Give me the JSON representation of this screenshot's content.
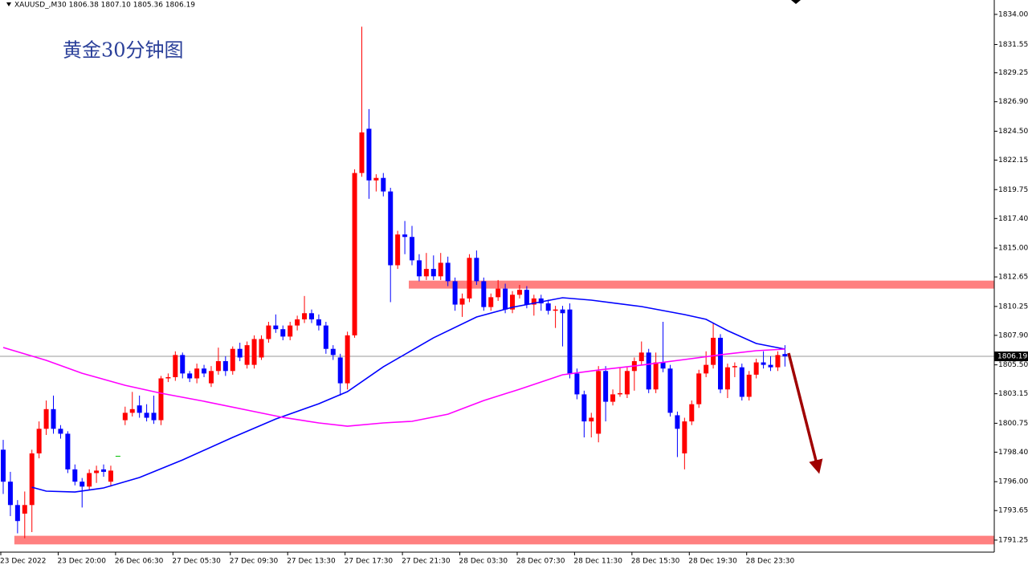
{
  "chart_data": {
    "type": "candlestick",
    "header": "XAUUSD_,M30  1806.38 1807.10 1805.36 1806.19",
    "title": "黄金30分钟图",
    "categories": [
      "23 Dec 2022",
      null,
      null,
      null,
      null,
      null,
      null,
      null,
      "23 Dec 20:00",
      null,
      null,
      null,
      null,
      null,
      null,
      null,
      "26 Dec 06:30",
      null,
      null,
      null,
      null,
      null,
      null,
      null,
      "27 Dec 05:30",
      null,
      null,
      null,
      null,
      null,
      null,
      null,
      "27 Dec 09:30",
      null,
      null,
      null,
      null,
      null,
      null,
      null,
      "27 Dec 13:30",
      null,
      null,
      null,
      null,
      null,
      null,
      null,
      "27 Dec 17:30",
      null,
      null,
      null,
      null,
      null,
      null,
      null,
      "27 Dec 21:30",
      null,
      null,
      null,
      null,
      null,
      null,
      null,
      "28 Dec 03:30",
      null,
      null,
      null,
      null,
      null,
      null,
      null,
      "28 Dec 07:30",
      null,
      null,
      null,
      null,
      null,
      null,
      null,
      "28 Dec 11:30",
      null,
      null,
      null,
      null,
      null,
      null,
      null,
      "28 Dec 15:30",
      null,
      null,
      null,
      null,
      null,
      null,
      null,
      "28 Dec 19:30",
      null,
      null,
      null,
      null,
      null,
      null,
      null,
      "28 Dec 23:30",
      null,
      null,
      null,
      null,
      null
    ],
    "open": [
      1798.6,
      1796.0,
      1794.1,
      1793.4,
      1794.1,
      1798.3,
      1800.3,
      1801.9,
      1800.3,
      1799.9,
      1797.0,
      1796.0,
      1795.6,
      1796.7,
      1797.0,
      1796.0,
      1798.1,
      1801.0,
      1801.6,
      1802.2,
      1801.6,
      1801.6,
      1801.0,
      1804.4,
      1804.5,
      1806.3,
      1804.8,
      1804.4,
      1805.2,
      1804.0,
      1805.0,
      1805.8,
      1805.0,
      1806.8,
      1805.5,
      1805.5,
      1806.1,
      1807.6,
      1808.7,
      1808.4,
      1807.8,
      1808.7,
      1809.2,
      1809.7,
      1809.2,
      1808.7,
      1806.8,
      1806.1,
      1804.0,
      1807.9,
      1821.1,
      1824.7,
      1820.5,
      1820.7,
      1819.6,
      1813.6,
      1816.1,
      1815.9,
      1814.0,
      1812.7,
      1813.3,
      1812.7,
      1813.8,
      1812.3,
      1810.4,
      1810.9,
      1814.2,
      1812.3,
      1810.2,
      1811.0,
      1811.7,
      1810.0,
      1811.2,
      1811.6,
      1810.4,
      1810.9,
      1810.5,
      1809.9,
      1810.0,
      1810.0,
      1804.8,
      1803.1,
      1800.9,
      1799.9,
      1805.0,
      1802.5,
      1803.1,
      1803.1,
      1805.0,
      1805.8,
      1806.5,
      1803.5,
      1805.7,
      1805.2,
      1801.4,
      1798.3,
      1800.9,
      1802.3,
      1804.8,
      1805.5,
      1807.7,
      1803.5,
      1805.3,
      1805.3,
      1802.9,
      1804.7,
      1805.7,
      1805.5,
      1805.3,
      1806.38
    ],
    "high": [
      1799.4,
      1796.8,
      1794.5,
      1795.2,
      1798.6,
      1800.9,
      1802.6,
      1803.0,
      1800.6,
      1800.1,
      1797.4,
      1796.3,
      1797.0,
      1797.3,
      1797.4,
      1797.3,
      1798.1,
      1802.1,
      1803.3,
      1803.0,
      1802.3,
      1803.0,
      1804.6,
      1804.8,
      1806.6,
      1806.5,
      1805.0,
      1805.6,
      1805.5,
      1805.4,
      1806.9,
      1806.2,
      1807.0,
      1807.3,
      1807.4,
      1807.9,
      1807.9,
      1809.0,
      1809.6,
      1808.7,
      1809.0,
      1809.5,
      1811.1,
      1810.0,
      1809.6,
      1809.0,
      1807.1,
      1806.4,
      1808.2,
      1821.4,
      1833.0,
      1826.3,
      1821.0,
      1821.1,
      1819.9,
      1816.4,
      1817.2,
      1816.8,
      1814.5,
      1814.6,
      1814.4,
      1814.6,
      1814.3,
      1812.6,
      1811.3,
      1814.5,
      1814.8,
      1812.6,
      1811.3,
      1812.4,
      1812.1,
      1811.5,
      1812.0,
      1811.9,
      1811.2,
      1811.2,
      1810.8,
      1810.3,
      1810.3,
      1810.5,
      1805.2,
      1803.4,
      1801.6,
      1805.4,
      1805.4,
      1803.5,
      1805.3,
      1805.3,
      1806.1,
      1807.4,
      1806.8,
      1806.5,
      1809.0,
      1805.5,
      1801.7,
      1801.2,
      1802.6,
      1805.1,
      1806.6,
      1808.9,
      1808.0,
      1805.6,
      1805.7,
      1805.6,
      1805.0,
      1806.0,
      1806.6,
      1806.2,
      1806.6,
      1807.1
    ],
    "low": [
      1795.0,
      1793.2,
      1791.8,
      1791.4,
      1791.9,
      1797.9,
      1799.8,
      1799.9,
      1799.5,
      1796.7,
      1795.7,
      1793.9,
      1795.3,
      1795.9,
      1796.4,
      1795.6,
      1798.1,
      1800.6,
      1801.3,
      1801.2,
      1800.9,
      1800.7,
      1800.6,
      1804.1,
      1804.2,
      1804.4,
      1804.1,
      1804.0,
      1804.5,
      1803.7,
      1804.7,
      1804.6,
      1804.7,
      1805.8,
      1805.2,
      1805.2,
      1805.9,
      1807.3,
      1808.1,
      1807.5,
      1807.5,
      1808.3,
      1808.9,
      1808.9,
      1808.3,
      1806.4,
      1805.9,
      1803.0,
      1803.5,
      1807.7,
      1820.8,
      1819.0,
      1819.6,
      1819.2,
      1810.6,
      1813.3,
      1814.5,
      1813.6,
      1812.3,
      1812.4,
      1812.4,
      1812.4,
      1811.9,
      1809.9,
      1809.4,
      1810.6,
      1812.0,
      1809.9,
      1809.9,
      1810.7,
      1809.7,
      1809.7,
      1810.9,
      1810.1,
      1809.5,
      1809.9,
      1809.6,
      1808.5,
      1807.0,
      1804.4,
      1802.7,
      1799.6,
      1799.6,
      1799.2,
      1800.9,
      1802.2,
      1802.9,
      1802.8,
      1803.4,
      1805.5,
      1803.2,
      1803.2,
      1804.9,
      1801.3,
      1798.0,
      1797.0,
      1800.6,
      1802.0,
      1804.5,
      1805.2,
      1803.2,
      1802.8,
      1804.5,
      1802.6,
      1802.6,
      1804.4,
      1805.2,
      1805.0,
      1805.0,
      1805.36
    ],
    "close": [
      1796.0,
      1794.1,
      1792.8,
      1794.1,
      1798.3,
      1800.3,
      1801.9,
      1800.3,
      1799.9,
      1797.0,
      1796.0,
      1795.6,
      1796.7,
      1796.9,
      1796.8,
      1796.9,
      1798.1,
      1801.6,
      1801.9,
      1801.6,
      1801.2,
      1801.0,
      1804.4,
      1804.5,
      1806.3,
      1804.8,
      1804.4,
      1805.2,
      1804.8,
      1805.0,
      1805.8,
      1805.0,
      1806.8,
      1806.1,
      1807.1,
      1807.6,
      1807.6,
      1808.7,
      1808.4,
      1807.8,
      1808.7,
      1809.2,
      1809.7,
      1809.2,
      1808.7,
      1806.8,
      1806.3,
      1804.0,
      1807.9,
      1821.1,
      1824.4,
      1820.5,
      1820.7,
      1819.6,
      1813.6,
      1816.1,
      1815.9,
      1814.0,
      1812.7,
      1813.3,
      1812.7,
      1813.8,
      1812.3,
      1810.4,
      1810.9,
      1814.2,
      1812.3,
      1810.2,
      1811.0,
      1811.7,
      1810.0,
      1811.2,
      1811.6,
      1810.4,
      1810.9,
      1810.5,
      1809.9,
      1810.0,
      1809.7,
      1804.8,
      1803.1,
      1800.9,
      1801.2,
      1805.0,
      1802.5,
      1803.1,
      1803.2,
      1805.0,
      1805.8,
      1806.5,
      1803.5,
      1805.7,
      1805.2,
      1801.6,
      1800.3,
      1800.9,
      1802.3,
      1804.8,
      1805.5,
      1807.7,
      1803.5,
      1805.3,
      1805.4,
      1802.9,
      1804.7,
      1805.7,
      1805.5,
      1805.3,
      1806.3,
      1806.19
    ],
    "up_color": "#ff0000",
    "down_color": "#0000ff",
    "doji_color": "#00c000",
    "ma_series": [
      {
        "color": "#0000ff",
        "x": [
          4,
          6,
          10,
          14,
          19,
          25,
          32,
          38,
          44,
          48,
          53,
          60,
          66,
          71,
          78,
          82,
          89,
          95,
          98,
          101,
          105,
          109
        ],
        "values": [
          1795.55,
          1795.23,
          1795.16,
          1795.49,
          1796.34,
          1797.77,
          1799.6,
          1801.1,
          1802.34,
          1803.32,
          1805.34,
          1807.7,
          1809.39,
          1810.18,
          1810.96,
          1810.76,
          1810.24,
          1809.59,
          1809.2,
          1808.28,
          1807.24,
          1806.78
        ]
      },
      {
        "color": "#ff00ff",
        "x": [
          0,
          6,
          11,
          17,
          22,
          28,
          34,
          39,
          44,
          48,
          53,
          57,
          62,
          67,
          72,
          78,
          83,
          89,
          95,
          100,
          105,
          109
        ],
        "values": [
          1806.91,
          1805.87,
          1804.82,
          1803.84,
          1803.19,
          1802.54,
          1801.82,
          1801.23,
          1800.78,
          1800.51,
          1800.78,
          1800.91,
          1801.49,
          1802.6,
          1803.52,
          1804.69,
          1805.08,
          1805.48,
          1805.93,
          1806.32,
          1806.65,
          1806.78
        ]
      }
    ],
    "zones": [
      {
        "low": 1811.7,
        "high": 1812.35,
        "start": 57,
        "color": "#ff8080"
      },
      {
        "low": 1790.9,
        "high": 1791.6,
        "start": 2,
        "color": "#ff8080"
      }
    ],
    "last_price": 1806.19,
    "ylim": [
      1790.27,
      1835.17
    ],
    "yticks": [
      {
        "value": 1834,
        "label": "1834.00"
      },
      {
        "value": 1831.55,
        "label": "1831.55"
      },
      {
        "value": 1829.25,
        "label": "1829.25"
      },
      {
        "value": 1826.9,
        "label": "1826.90"
      },
      {
        "value": 1824.5,
        "label": "1824.50"
      },
      {
        "value": 1822.15,
        "label": "1822.15"
      },
      {
        "value": 1819.75,
        "label": "1819.75"
      },
      {
        "value": 1817.4,
        "label": "1817.40"
      },
      {
        "value": 1815,
        "label": "1815.00"
      },
      {
        "value": 1812.65,
        "label": "1812.65"
      },
      {
        "value": 1810.25,
        "label": "1810.25"
      },
      {
        "value": 1807.9,
        "label": "1807.90"
      },
      {
        "value": 1805.5,
        "label": "1805.50"
      },
      {
        "value": 1803.15,
        "label": "1803.15"
      },
      {
        "value": 1800.75,
        "label": "1800.75"
      },
      {
        "value": 1798.4,
        "label": "1798.40"
      },
      {
        "value": 1796,
        "label": "1796.00"
      },
      {
        "value": 1793.65,
        "label": "1793.65"
      },
      {
        "value": 1791.25,
        "label": "1791.25"
      }
    ]
  }
}
